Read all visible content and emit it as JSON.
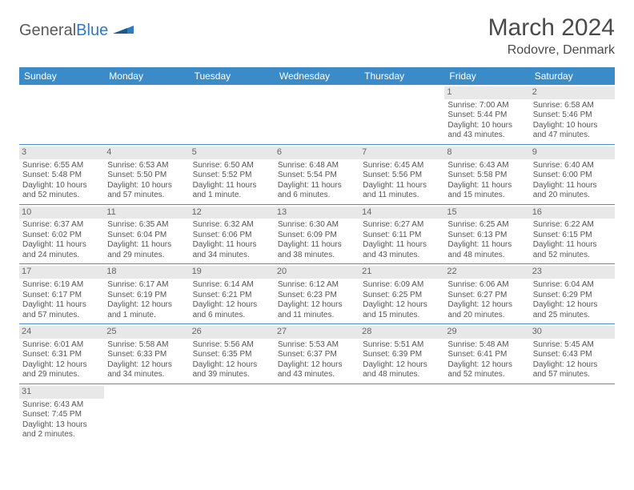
{
  "logo": {
    "word1": "General",
    "word2": "Blue",
    "text_color": "#5a5a5a",
    "accent_color": "#2f7bbf"
  },
  "title": "March 2024",
  "location": "Rodovre, Denmark",
  "header_bg": "#3b8bc8",
  "header_fg": "#ffffff",
  "divider_color": "#4a8fc7",
  "daynum_bg": "#e8e8e8",
  "dayNames": [
    "Sunday",
    "Monday",
    "Tuesday",
    "Wednesday",
    "Thursday",
    "Friday",
    "Saturday"
  ],
  "leadingBlanks": 5,
  "days": [
    {
      "n": "1",
      "sunrise": "Sunrise: 7:00 AM",
      "sunset": "Sunset: 5:44 PM",
      "d1": "Daylight: 10 hours",
      "d2": "and 43 minutes."
    },
    {
      "n": "2",
      "sunrise": "Sunrise: 6:58 AM",
      "sunset": "Sunset: 5:46 PM",
      "d1": "Daylight: 10 hours",
      "d2": "and 47 minutes."
    },
    {
      "n": "3",
      "sunrise": "Sunrise: 6:55 AM",
      "sunset": "Sunset: 5:48 PM",
      "d1": "Daylight: 10 hours",
      "d2": "and 52 minutes."
    },
    {
      "n": "4",
      "sunrise": "Sunrise: 6:53 AM",
      "sunset": "Sunset: 5:50 PM",
      "d1": "Daylight: 10 hours",
      "d2": "and 57 minutes."
    },
    {
      "n": "5",
      "sunrise": "Sunrise: 6:50 AM",
      "sunset": "Sunset: 5:52 PM",
      "d1": "Daylight: 11 hours",
      "d2": "and 1 minute."
    },
    {
      "n": "6",
      "sunrise": "Sunrise: 6:48 AM",
      "sunset": "Sunset: 5:54 PM",
      "d1": "Daylight: 11 hours",
      "d2": "and 6 minutes."
    },
    {
      "n": "7",
      "sunrise": "Sunrise: 6:45 AM",
      "sunset": "Sunset: 5:56 PM",
      "d1": "Daylight: 11 hours",
      "d2": "and 11 minutes."
    },
    {
      "n": "8",
      "sunrise": "Sunrise: 6:43 AM",
      "sunset": "Sunset: 5:58 PM",
      "d1": "Daylight: 11 hours",
      "d2": "and 15 minutes."
    },
    {
      "n": "9",
      "sunrise": "Sunrise: 6:40 AM",
      "sunset": "Sunset: 6:00 PM",
      "d1": "Daylight: 11 hours",
      "d2": "and 20 minutes."
    },
    {
      "n": "10",
      "sunrise": "Sunrise: 6:37 AM",
      "sunset": "Sunset: 6:02 PM",
      "d1": "Daylight: 11 hours",
      "d2": "and 24 minutes."
    },
    {
      "n": "11",
      "sunrise": "Sunrise: 6:35 AM",
      "sunset": "Sunset: 6:04 PM",
      "d1": "Daylight: 11 hours",
      "d2": "and 29 minutes."
    },
    {
      "n": "12",
      "sunrise": "Sunrise: 6:32 AM",
      "sunset": "Sunset: 6:06 PM",
      "d1": "Daylight: 11 hours",
      "d2": "and 34 minutes."
    },
    {
      "n": "13",
      "sunrise": "Sunrise: 6:30 AM",
      "sunset": "Sunset: 6:09 PM",
      "d1": "Daylight: 11 hours",
      "d2": "and 38 minutes."
    },
    {
      "n": "14",
      "sunrise": "Sunrise: 6:27 AM",
      "sunset": "Sunset: 6:11 PM",
      "d1": "Daylight: 11 hours",
      "d2": "and 43 minutes."
    },
    {
      "n": "15",
      "sunrise": "Sunrise: 6:25 AM",
      "sunset": "Sunset: 6:13 PM",
      "d1": "Daylight: 11 hours",
      "d2": "and 48 minutes."
    },
    {
      "n": "16",
      "sunrise": "Sunrise: 6:22 AM",
      "sunset": "Sunset: 6:15 PM",
      "d1": "Daylight: 11 hours",
      "d2": "and 52 minutes."
    },
    {
      "n": "17",
      "sunrise": "Sunrise: 6:19 AM",
      "sunset": "Sunset: 6:17 PM",
      "d1": "Daylight: 11 hours",
      "d2": "and 57 minutes."
    },
    {
      "n": "18",
      "sunrise": "Sunrise: 6:17 AM",
      "sunset": "Sunset: 6:19 PM",
      "d1": "Daylight: 12 hours",
      "d2": "and 1 minute."
    },
    {
      "n": "19",
      "sunrise": "Sunrise: 6:14 AM",
      "sunset": "Sunset: 6:21 PM",
      "d1": "Daylight: 12 hours",
      "d2": "and 6 minutes."
    },
    {
      "n": "20",
      "sunrise": "Sunrise: 6:12 AM",
      "sunset": "Sunset: 6:23 PM",
      "d1": "Daylight: 12 hours",
      "d2": "and 11 minutes."
    },
    {
      "n": "21",
      "sunrise": "Sunrise: 6:09 AM",
      "sunset": "Sunset: 6:25 PM",
      "d1": "Daylight: 12 hours",
      "d2": "and 15 minutes."
    },
    {
      "n": "22",
      "sunrise": "Sunrise: 6:06 AM",
      "sunset": "Sunset: 6:27 PM",
      "d1": "Daylight: 12 hours",
      "d2": "and 20 minutes."
    },
    {
      "n": "23",
      "sunrise": "Sunrise: 6:04 AM",
      "sunset": "Sunset: 6:29 PM",
      "d1": "Daylight: 12 hours",
      "d2": "and 25 minutes."
    },
    {
      "n": "24",
      "sunrise": "Sunrise: 6:01 AM",
      "sunset": "Sunset: 6:31 PM",
      "d1": "Daylight: 12 hours",
      "d2": "and 29 minutes."
    },
    {
      "n": "25",
      "sunrise": "Sunrise: 5:58 AM",
      "sunset": "Sunset: 6:33 PM",
      "d1": "Daylight: 12 hours",
      "d2": "and 34 minutes."
    },
    {
      "n": "26",
      "sunrise": "Sunrise: 5:56 AM",
      "sunset": "Sunset: 6:35 PM",
      "d1": "Daylight: 12 hours",
      "d2": "and 39 minutes."
    },
    {
      "n": "27",
      "sunrise": "Sunrise: 5:53 AM",
      "sunset": "Sunset: 6:37 PM",
      "d1": "Daylight: 12 hours",
      "d2": "and 43 minutes."
    },
    {
      "n": "28",
      "sunrise": "Sunrise: 5:51 AM",
      "sunset": "Sunset: 6:39 PM",
      "d1": "Daylight: 12 hours",
      "d2": "and 48 minutes."
    },
    {
      "n": "29",
      "sunrise": "Sunrise: 5:48 AM",
      "sunset": "Sunset: 6:41 PM",
      "d1": "Daylight: 12 hours",
      "d2": "and 52 minutes."
    },
    {
      "n": "30",
      "sunrise": "Sunrise: 5:45 AM",
      "sunset": "Sunset: 6:43 PM",
      "d1": "Daylight: 12 hours",
      "d2": "and 57 minutes."
    },
    {
      "n": "31",
      "sunrise": "Sunrise: 6:43 AM",
      "sunset": "Sunset: 7:45 PM",
      "d1": "Daylight: 13 hours",
      "d2": "and 2 minutes."
    }
  ]
}
